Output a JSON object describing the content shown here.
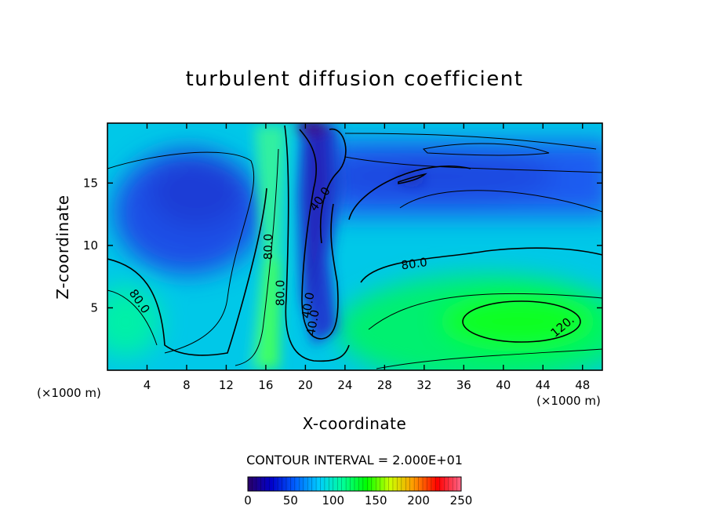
{
  "chart_data": {
    "type": "heatmap",
    "title": "turbulent diffusion coefficient",
    "xlabel": "X-coordinate",
    "ylabel": "Z-coordinate",
    "x_unit": "(×1000 m)",
    "z_unit": "(×1000 m)",
    "xlim": [
      0,
      50
    ],
    "zlim": [
      0,
      19.8
    ],
    "x_ticks": [
      4,
      8,
      12,
      16,
      20,
      24,
      28,
      32,
      36,
      40,
      44,
      48
    ],
    "z_ticks": [
      5,
      10,
      15
    ],
    "contour_interval_text": "CONTOUR INTERVAL = 2.000E+01",
    "colorbar": {
      "range": [
        0,
        250
      ],
      "ticks": [
        0,
        50,
        100,
        150,
        200,
        250
      ],
      "stops": [
        "#2a0066",
        "#0000cc",
        "#0060ff",
        "#00ccff",
        "#00ff99",
        "#00ff00",
        "#ccff00",
        "#ff9900",
        "#ff0000",
        "#ff6688"
      ]
    },
    "contour_labels": [
      {
        "text": "80.0",
        "x": 3.2,
        "z": 5.5,
        "angle": 55
      },
      {
        "text": "80.0",
        "x": 16.3,
        "z": 9.9,
        "angle": -90
      },
      {
        "text": "80.0",
        "x": 17.5,
        "z": 6.2,
        "angle": -90
      },
      {
        "text": "40.0",
        "x": 21.5,
        "z": 13.7,
        "angle": -55
      },
      {
        "text": "40.0",
        "x": 20.3,
        "z": 5.2,
        "angle": -80
      },
      {
        "text": "40.0",
        "x": 20.8,
        "z": 3.8,
        "angle": -80
      },
      {
        "text": "80.0",
        "x": 31.0,
        "z": 8.5,
        "angle": -8
      },
      {
        "text": "120.",
        "x": 46.0,
        "z": 3.5,
        "angle": -40
      }
    ],
    "features": [
      {
        "name": "low-diffusion region upper left",
        "x": 8,
        "z": 12.5,
        "value": 30
      },
      {
        "name": "low-diffusion tongue",
        "x": 20.5,
        "z": 11,
        "value": 20
      },
      {
        "name": "minimum at top",
        "x": 21,
        "z": 19.5,
        "value": 5
      },
      {
        "name": "upper right minimum",
        "x": 31,
        "z": 15.5,
        "value": 25
      },
      {
        "name": "high-diffusion column",
        "x": 16.5,
        "z": 6,
        "value": 110
      },
      {
        "name": "maximum lower right",
        "x": 42,
        "z": 4,
        "value": 130
      },
      {
        "name": "lower left high",
        "x": 2,
        "z": 4,
        "value": 95
      }
    ]
  }
}
